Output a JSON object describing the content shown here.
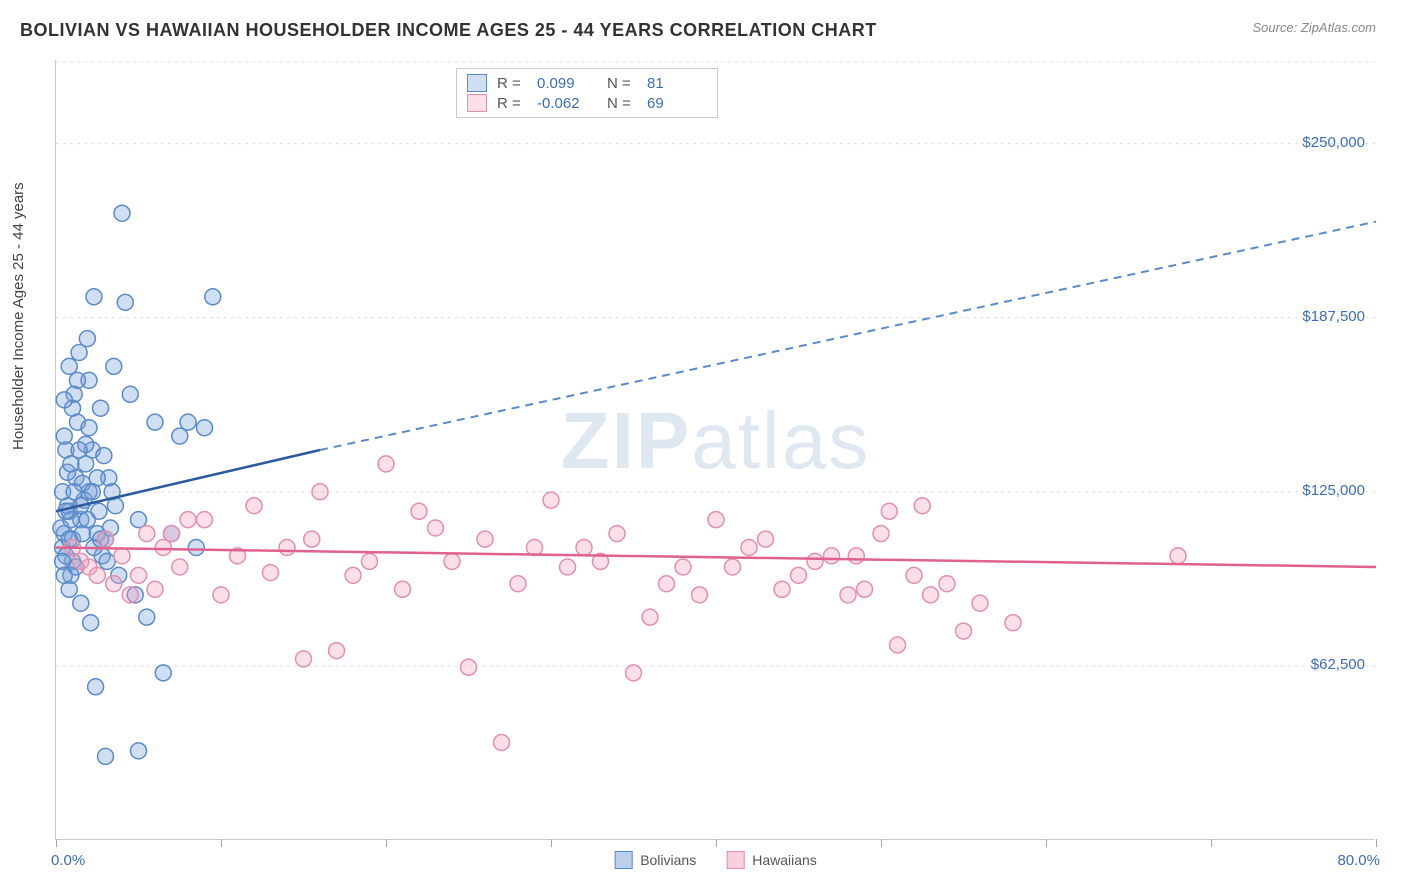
{
  "header": {
    "title": "BOLIVIAN VS HAWAIIAN HOUSEHOLDER INCOME AGES 25 - 44 YEARS CORRELATION CHART",
    "source": "Source: ZipAtlas.com"
  },
  "chart": {
    "type": "scatter",
    "y_label": "Householder Income Ages 25 - 44 years",
    "x_min_label": "0.0%",
    "x_max_label": "80.0%",
    "xlim": [
      0,
      80
    ],
    "ylim": [
      0,
      280000
    ],
    "y_ticks": [
      62500,
      125000,
      187500,
      250000
    ],
    "y_tick_labels": [
      "$62,500",
      "$125,000",
      "$187,500",
      "$250,000"
    ],
    "x_tick_positions": [
      0,
      10,
      20,
      30,
      40,
      50,
      60,
      70,
      80
    ],
    "grid_color": "#e0e0e0",
    "background_color": "#ffffff",
    "watermark": "ZIPatlas",
    "marker_radius": 8,
    "marker_stroke_width": 1.5,
    "series": [
      {
        "name": "Bolivians",
        "color_fill": "rgba(120,160,215,0.35)",
        "color_stroke": "#5a8bc9",
        "trend_solid_color": "#2c5aa0",
        "trend_dash_color": "#5a8bc9",
        "trend": {
          "x1": 0,
          "y1": 118000,
          "solid_x2": 16,
          "y_at_solid_x2": 140000,
          "x2": 80,
          "y2": 222000
        },
        "stats": {
          "R": "0.099",
          "N": "81"
        },
        "points": [
          [
            0.5,
            110000
          ],
          [
            0.8,
            118000
          ],
          [
            1.0,
            100000
          ],
          [
            1.2,
            130000
          ],
          [
            0.6,
            140000
          ],
          [
            1.5,
            115000
          ],
          [
            0.4,
            105000
          ],
          [
            2.0,
            125000
          ],
          [
            1.8,
            135000
          ],
          [
            0.9,
            95000
          ],
          [
            1.3,
            150000
          ],
          [
            2.5,
            110000
          ],
          [
            0.7,
            120000
          ],
          [
            3.0,
            108000
          ],
          [
            1.1,
            160000
          ],
          [
            2.2,
            140000
          ],
          [
            0.3,
            112000
          ],
          [
            1.6,
            128000
          ],
          [
            2.8,
            102000
          ],
          [
            0.5,
            145000
          ],
          [
            4.0,
            225000
          ],
          [
            2.3,
            195000
          ],
          [
            4.2,
            193000
          ],
          [
            9.5,
            195000
          ],
          [
            5.0,
            115000
          ],
          [
            3.5,
            170000
          ],
          [
            1.4,
            175000
          ],
          [
            2.0,
            165000
          ],
          [
            6.0,
            150000
          ],
          [
            7.5,
            145000
          ],
          [
            8.0,
            150000
          ],
          [
            9.0,
            148000
          ],
          [
            3.2,
            130000
          ],
          [
            2.7,
            155000
          ],
          [
            1.9,
            180000
          ],
          [
            4.5,
            160000
          ],
          [
            0.8,
            90000
          ],
          [
            1.5,
            85000
          ],
          [
            3.8,
            95000
          ],
          [
            2.1,
            78000
          ],
          [
            5.5,
            80000
          ],
          [
            4.8,
            88000
          ],
          [
            6.5,
            60000
          ],
          [
            2.4,
            55000
          ],
          [
            3.0,
            30000
          ],
          [
            5.0,
            32000
          ],
          [
            1.0,
            108000
          ],
          [
            0.6,
            102000
          ],
          [
            0.9,
            115000
          ],
          [
            1.7,
            122000
          ],
          [
            2.6,
            118000
          ],
          [
            3.4,
            125000
          ],
          [
            7.0,
            110000
          ],
          [
            8.5,
            105000
          ],
          [
            1.2,
            98000
          ],
          [
            0.4,
            125000
          ],
          [
            0.7,
            132000
          ],
          [
            1.8,
            142000
          ],
          [
            2.9,
            138000
          ],
          [
            3.6,
            120000
          ],
          [
            1.0,
            155000
          ],
          [
            2.0,
            148000
          ],
          [
            0.5,
            158000
          ],
          [
            1.3,
            165000
          ],
          [
            0.8,
            170000
          ],
          [
            1.6,
            110000
          ],
          [
            2.3,
            105000
          ],
          [
            3.1,
            100000
          ],
          [
            0.9,
            135000
          ],
          [
            1.4,
            140000
          ],
          [
            2.5,
            130000
          ],
          [
            0.6,
            118000
          ],
          [
            1.1,
            125000
          ],
          [
            1.9,
            115000
          ],
          [
            2.7,
            108000
          ],
          [
            3.3,
            112000
          ],
          [
            0.4,
            100000
          ],
          [
            0.8,
            108000
          ],
          [
            1.5,
            120000
          ],
          [
            2.2,
            125000
          ],
          [
            0.5,
            95000
          ]
        ]
      },
      {
        "name": "Hawaiians",
        "color_fill": "rgba(240,160,190,0.35)",
        "color_stroke": "#e190b0",
        "trend_solid_color": "#e06090",
        "trend": {
          "x1": 0,
          "y1": 105000,
          "x2": 80,
          "y2": 98000
        },
        "stats": {
          "R": "-0.062",
          "N": "69"
        },
        "points": [
          [
            1.0,
            105000
          ],
          [
            3.0,
            108000
          ],
          [
            5.0,
            95000
          ],
          [
            7.0,
            110000
          ],
          [
            2.0,
            98000
          ],
          [
            4.0,
            102000
          ],
          [
            6.0,
            90000
          ],
          [
            8.0,
            115000
          ],
          [
            10.0,
            88000
          ],
          [
            12.0,
            120000
          ],
          [
            14.0,
            105000
          ],
          [
            16.0,
            125000
          ],
          [
            18.0,
            95000
          ],
          [
            20.0,
            135000
          ],
          [
            22.0,
            118000
          ],
          [
            24.0,
            100000
          ],
          [
            26.0,
            108000
          ],
          [
            28.0,
            92000
          ],
          [
            30.0,
            122000
          ],
          [
            32.0,
            105000
          ],
          [
            34.0,
            110000
          ],
          [
            36.0,
            80000
          ],
          [
            38.0,
            98000
          ],
          [
            40.0,
            115000
          ],
          [
            42.0,
            105000
          ],
          [
            44.0,
            90000
          ],
          [
            46.0,
            100000
          ],
          [
            48.0,
            88000
          ],
          [
            50.0,
            110000
          ],
          [
            52.0,
            95000
          ],
          [
            54.0,
            92000
          ],
          [
            56.0,
            85000
          ],
          [
            58.0,
            78000
          ],
          [
            48.5,
            102000
          ],
          [
            51.0,
            70000
          ],
          [
            35.0,
            60000
          ],
          [
            15.0,
            65000
          ],
          [
            17.0,
            68000
          ],
          [
            25.0,
            62000
          ],
          [
            27.0,
            35000
          ],
          [
            1.5,
            100000
          ],
          [
            2.5,
            95000
          ],
          [
            3.5,
            92000
          ],
          [
            4.5,
            88000
          ],
          [
            5.5,
            110000
          ],
          [
            6.5,
            105000
          ],
          [
            7.5,
            98000
          ],
          [
            9.0,
            115000
          ],
          [
            11.0,
            102000
          ],
          [
            13.0,
            96000
          ],
          [
            15.5,
            108000
          ],
          [
            19.0,
            100000
          ],
          [
            21.0,
            90000
          ],
          [
            23.0,
            112000
          ],
          [
            29.0,
            105000
          ],
          [
            31.0,
            98000
          ],
          [
            33.0,
            100000
          ],
          [
            37.0,
            92000
          ],
          [
            39.0,
            88000
          ],
          [
            41.0,
            98000
          ],
          [
            43.0,
            108000
          ],
          [
            45.0,
            95000
          ],
          [
            47.0,
            102000
          ],
          [
            49.0,
            90000
          ],
          [
            53.0,
            88000
          ],
          [
            55.0,
            75000
          ],
          [
            68.0,
            102000
          ],
          [
            50.5,
            118000
          ],
          [
            52.5,
            120000
          ]
        ]
      }
    ],
    "legend_bottom": [
      {
        "label": "Bolivians",
        "fill": "rgba(120,160,215,0.5)",
        "stroke": "#5a8bc9"
      },
      {
        "label": "Hawaiians",
        "fill": "rgba(240,160,190,0.5)",
        "stroke": "#e190b0"
      }
    ]
  }
}
